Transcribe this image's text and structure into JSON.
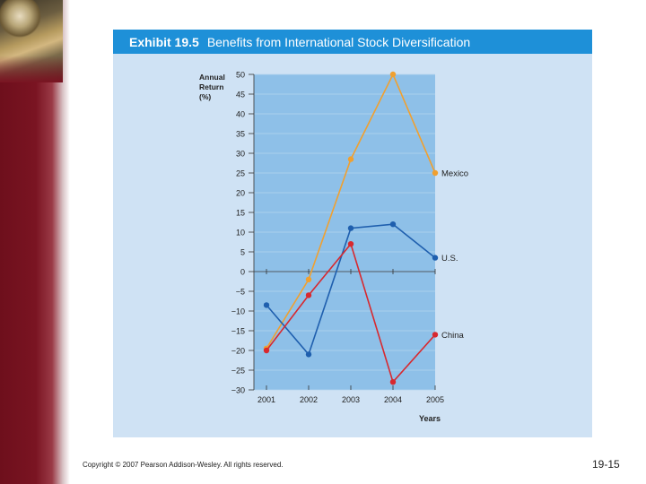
{
  "exhibit": {
    "label": "Exhibit 19.5",
    "title": "Benefits from International Stock Diversification"
  },
  "chart_data": {
    "type": "line",
    "ylabel_lines": [
      "Annual",
      "Return",
      "(%)"
    ],
    "xlabel": "Years",
    "categories": [
      "2001",
      "2002",
      "2003",
      "2004",
      "2005"
    ],
    "ylim": [
      -30,
      50
    ],
    "yticks": [
      50,
      45,
      40,
      35,
      30,
      25,
      20,
      15,
      10,
      5,
      0,
      -5,
      -10,
      -15,
      -20,
      -25,
      -30
    ],
    "ytick_labels": [
      "50",
      "45",
      "40",
      "35",
      "30",
      "25",
      "20",
      "15",
      "10",
      "5",
      "0",
      "−5",
      "−10",
      "−15",
      "−20",
      "−25",
      "−30"
    ],
    "grid": true,
    "series": [
      {
        "name": "Mexico",
        "color": "#f0a030",
        "values": [
          -19.5,
          -2,
          28.5,
          50,
          25
        ]
      },
      {
        "name": "U.S.",
        "color": "#1f5fae",
        "values": [
          -8.5,
          -21,
          11,
          12,
          3.5
        ]
      },
      {
        "name": "China",
        "color": "#d8282e",
        "values": [
          -20,
          -6,
          7,
          -28,
          -16
        ]
      }
    ]
  },
  "footer": {
    "copyright": "Copyright © 2007 Pearson Addison-Wesley. All rights reserved.",
    "slide_number": "19-15"
  }
}
